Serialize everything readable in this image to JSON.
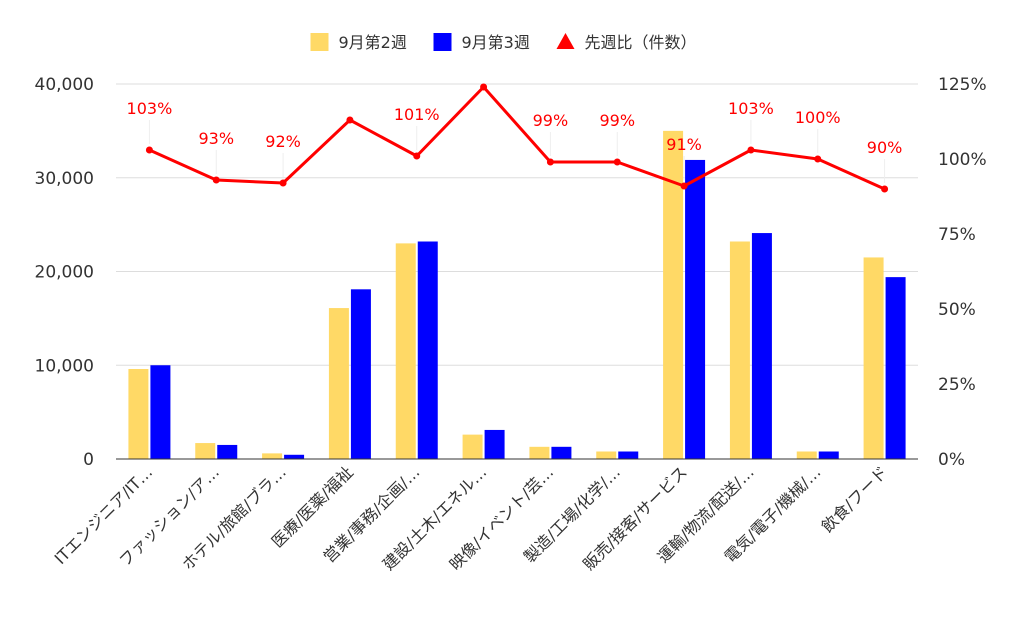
{
  "chart_data": {
    "type": "bar",
    "title": "",
    "xlabel": "",
    "ylabel": "",
    "categories": [
      "ITエンジニア/IT…",
      "ファッション/ア…",
      "ホテル/旅館/ブラ…",
      "医療/医薬/福祉",
      "営業/事務/企画/…",
      "建設/土木/エネル…",
      "映像/イベント/芸…",
      "製造/工場/化学/…",
      "販売/接客/サービス",
      "運輸/物流/配送/…",
      "電気/電子/機械/…",
      "飲食/フード"
    ],
    "series": [
      {
        "name": "9月第2週",
        "type": "bar",
        "axis": "left",
        "color": "#ffd966",
        "values": [
          9600,
          1700,
          600,
          16100,
          23000,
          2600,
          1300,
          800,
          35000,
          23200,
          800,
          21500
        ]
      },
      {
        "name": "9月第3週",
        "type": "bar",
        "axis": "left",
        "color": "#0000ff",
        "values": [
          10000,
          1500,
          450,
          18100,
          23200,
          3100,
          1300,
          800,
          31900,
          24100,
          800,
          19400
        ]
      },
      {
        "name": "先週比（件数）",
        "type": "line",
        "axis": "right",
        "color": "#ff0000",
        "marker": "triangle",
        "values": [
          103,
          93,
          92,
          113,
          101,
          124,
          99,
          99,
          91,
          103,
          100,
          90
        ],
        "labels": [
          "103%",
          "93%",
          "92%",
          "",
          "101%",
          "",
          "99%",
          "99%",
          "91%",
          "103%",
          "100%",
          "90%"
        ]
      }
    ],
    "y_left": {
      "min": 0,
      "max": 40000,
      "ticks": [
        0,
        10000,
        20000,
        30000,
        40000
      ],
      "tick_labels": [
        "0",
        "10,000",
        "20,000",
        "30,000",
        "40,000"
      ]
    },
    "y_right": {
      "min": 0,
      "max": 125,
      "ticks": [
        0,
        25,
        50,
        75,
        100,
        125
      ],
      "tick_labels": [
        "0%",
        "25%",
        "50%",
        "75%",
        "100%",
        "125%"
      ]
    },
    "grid": true,
    "legend": {
      "position": "top-center"
    }
  }
}
